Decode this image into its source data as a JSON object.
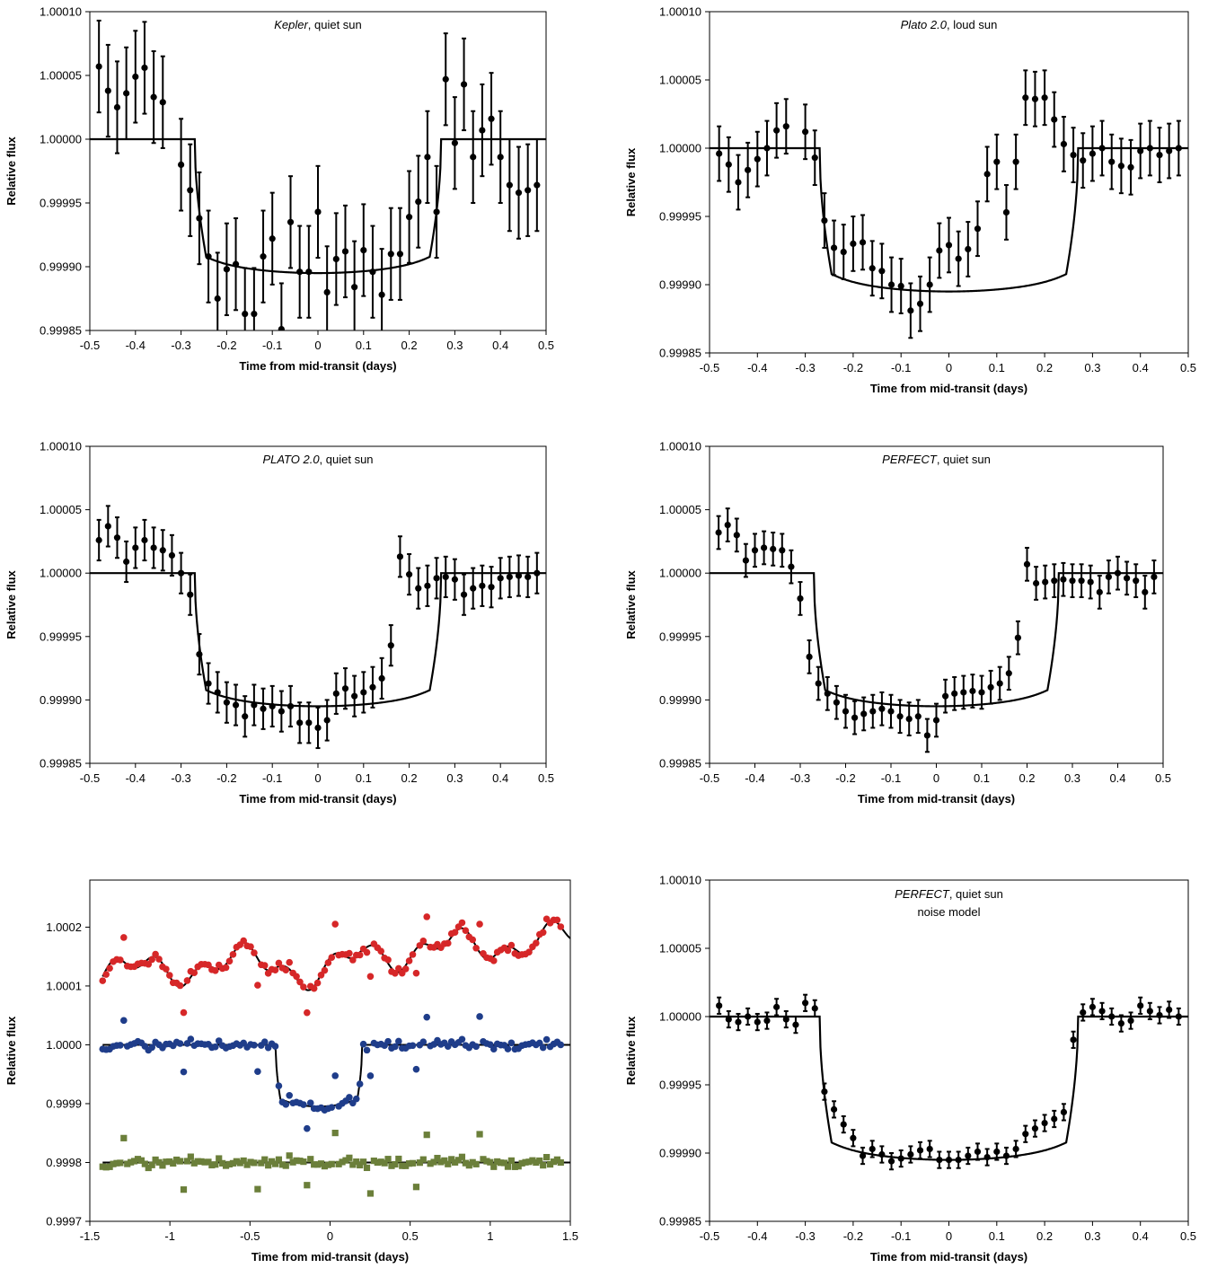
{
  "chart_data": [
    {
      "type": "scatter",
      "title": "",
      "annotation": {
        "italic": "Kepler",
        "rest": ", quiet sun"
      },
      "annotation2": "",
      "xlabel": "Time from mid-transit (days)",
      "ylabel": "Relative flux",
      "xlim": [
        -0.5,
        0.5
      ],
      "ylim": [
        0.99985,
        1.0001
      ],
      "xticks": [
        -0.5,
        -0.4,
        -0.3,
        -0.2,
        -0.1,
        0,
        0.1,
        0.2,
        0.3,
        0.4,
        0.5
      ],
      "xtick_labels": [
        "-0.5",
        "-0.4",
        "-0.3",
        "-0.2",
        "-0.1",
        "0",
        "0.1",
        "0.2",
        "0.3",
        "0.4",
        "0.5"
      ],
      "yticks": [
        0.99985,
        0.9999,
        0.99995,
        1.0,
        1.00005,
        1.0001
      ],
      "ytick_labels": [
        "0.99985",
        "0.99990",
        "0.99995",
        "1.00000",
        "1.00005",
        "1.00010"
      ],
      "grid": false,
      "model": {
        "depth": 0.000105,
        "t1": 0.27,
        "ingress": 0.025
      },
      "points": {
        "x": [
          -0.48,
          -0.46,
          -0.44,
          -0.42,
          -0.4,
          -0.38,
          -0.36,
          -0.34,
          -0.3,
          -0.28,
          -0.26,
          -0.24,
          -0.22,
          -0.2,
          -0.18,
          -0.16,
          -0.14,
          -0.12,
          -0.1,
          -0.08,
          -0.06,
          -0.04,
          -0.02,
          0,
          0.02,
          0.04,
          0.06,
          0.08,
          0.1,
          0.12,
          0.14,
          0.16,
          0.18,
          0.2,
          0.22,
          0.24,
          0.26,
          0.28,
          0.3,
          0.32,
          0.34,
          0.36,
          0.38,
          0.4,
          0.42,
          0.44,
          0.46,
          0.48
        ],
        "y": [
          1.000057,
          1.000038,
          1.000025,
          1.000036,
          1.000049,
          1.000056,
          1.000033,
          1.000029,
          0.99998,
          0.99996,
          0.999938,
          0.999908,
          0.999875,
          0.999898,
          0.999902,
          0.999863,
          0.999863,
          0.999908,
          0.999922,
          0.999851,
          0.999935,
          0.999896,
          0.999896,
          0.999943,
          0.99988,
          0.999906,
          0.999912,
          0.999884,
          0.999913,
          0.999896,
          0.999878,
          0.99991,
          0.99991,
          0.999939,
          0.999951,
          0.999986,
          0.999943,
          1.000047,
          0.999997,
          1.000043,
          0.999986,
          1.000007,
          1.000016,
          0.999986,
          0.999964,
          0.999958,
          0.99996,
          0.999964
        ],
        "err": 3.6e-05
      }
    },
    {
      "type": "scatter",
      "title": "",
      "annotation": {
        "italic": "Plato 2.0",
        "rest": ", loud sun"
      },
      "annotation2": "",
      "xlabel": "Time from mid-transit (days)",
      "ylabel": "Relative flux",
      "xlim": [
        -0.5,
        0.5
      ],
      "ylim": [
        0.99985,
        1.0001
      ],
      "xticks": [
        -0.5,
        -0.4,
        -0.3,
        -0.2,
        -0.1,
        0,
        0.1,
        0.2,
        0.3,
        0.4,
        0.5
      ],
      "xtick_labels": [
        "-0.5",
        "-0.4",
        "-0.3",
        "-0.2",
        "-0.1",
        "0",
        "0.1",
        "0.2",
        "0.3",
        "0.4",
        "0.5"
      ],
      "yticks": [
        0.99985,
        0.9999,
        0.99995,
        1.0,
        1.00005,
        1.0001
      ],
      "ytick_labels": [
        "0.99985",
        "0.99990",
        "0.99995",
        "1.00000",
        "1.00005",
        "1.00010"
      ],
      "grid": false,
      "model": {
        "depth": 0.000105,
        "t1": 0.27,
        "ingress": 0.025
      },
      "points": {
        "x": [
          -0.48,
          -0.46,
          -0.44,
          -0.42,
          -0.4,
          -0.38,
          -0.36,
          -0.34,
          -0.3,
          -0.28,
          -0.26,
          -0.24,
          -0.22,
          -0.2,
          -0.18,
          -0.16,
          -0.14,
          -0.12,
          -0.1,
          -0.08,
          -0.06,
          -0.04,
          -0.02,
          0,
          0.02,
          0.04,
          0.06,
          0.08,
          0.1,
          0.12,
          0.14,
          0.16,
          0.18,
          0.2,
          0.22,
          0.24,
          0.26,
          0.28,
          0.3,
          0.32,
          0.34,
          0.36,
          0.38,
          0.4,
          0.42,
          0.44,
          0.46,
          0.48
        ],
        "y": [
          0.999996,
          0.999988,
          0.999975,
          0.999984,
          0.999992,
          1.0,
          1.000013,
          1.000016,
          1.000012,
          0.999993,
          0.999947,
          0.999927,
          0.999924,
          0.99993,
          0.999931,
          0.999912,
          0.99991,
          0.9999,
          0.999899,
          0.999881,
          0.999886,
          0.9999,
          0.999925,
          0.999929,
          0.999919,
          0.999926,
          0.999941,
          0.999981,
          0.99999,
          0.999953,
          0.99999,
          1.000037,
          1.000036,
          1.000037,
          1.000021,
          1.000003,
          0.999995,
          0.999991,
          0.999996,
          1.0,
          0.99999,
          0.999987,
          0.999986,
          0.999998,
          1.0,
          0.999995,
          0.999998,
          1.0
        ],
        "err": 2e-05
      }
    },
    {
      "type": "scatter",
      "title": "",
      "annotation": {
        "italic": "PLATO 2.0",
        "rest": ", quiet sun"
      },
      "annotation2": "",
      "xlabel": "Time from mid-transit (days)",
      "ylabel": "Relative flux",
      "xlim": [
        -0.5,
        0.5
      ],
      "ylim": [
        0.99985,
        1.0001
      ],
      "xticks": [
        -0.5,
        -0.4,
        -0.3,
        -0.2,
        -0.1,
        0,
        0.1,
        0.2,
        0.3,
        0.4,
        0.5
      ],
      "xtick_labels": [
        "-0.5",
        "-0.4",
        "-0.3",
        "-0.2",
        "-0.1",
        "0",
        "0.1",
        "0.2",
        "0.3",
        "0.4",
        "0.5"
      ],
      "yticks": [
        0.99985,
        0.9999,
        0.99995,
        1.0,
        1.00005,
        1.0001
      ],
      "ytick_labels": [
        "0.99985",
        "0.99990",
        "0.99995",
        "1.00000",
        "1.00005",
        "1.00010"
      ],
      "grid": false,
      "model": {
        "depth": 0.000105,
        "t1": 0.27,
        "ingress": 0.025
      },
      "points": {
        "x": [
          -0.48,
          -0.46,
          -0.44,
          -0.42,
          -0.4,
          -0.38,
          -0.36,
          -0.34,
          -0.32,
          -0.3,
          -0.28,
          -0.26,
          -0.24,
          -0.22,
          -0.2,
          -0.18,
          -0.16,
          -0.14,
          -0.12,
          -0.1,
          -0.08,
          -0.06,
          -0.04,
          -0.02,
          0,
          0.02,
          0.04,
          0.06,
          0.08,
          0.1,
          0.12,
          0.14,
          0.16,
          0.18,
          0.2,
          0.22,
          0.24,
          0.26,
          0.28,
          0.3,
          0.32,
          0.34,
          0.36,
          0.38,
          0.4,
          0.42,
          0.44,
          0.46,
          0.48
        ],
        "y": [
          1.000026,
          1.000037,
          1.000028,
          1.000009,
          1.00002,
          1.000026,
          1.00002,
          1.000018,
          1.000014,
          1.0,
          0.999983,
          0.999936,
          0.999913,
          0.999906,
          0.999898,
          0.999896,
          0.999887,
          0.999896,
          0.999893,
          0.999895,
          0.999891,
          0.999895,
          0.999882,
          0.999882,
          0.999878,
          0.999884,
          0.999905,
          0.999909,
          0.999903,
          0.999906,
          0.99991,
          0.999917,
          0.999943,
          1.000013,
          0.999999,
          0.999988,
          0.99999,
          0.999996,
          0.999997,
          0.999995,
          0.999983,
          0.999988,
          0.99999,
          0.999989,
          0.999996,
          0.999997,
          0.999998,
          0.999997,
          1.0
        ],
        "err": 1.6e-05
      }
    },
    {
      "type": "scatter",
      "title": "",
      "annotation": {
        "italic": "PERFECT",
        "rest": ", quiet sun"
      },
      "annotation2": "",
      "xlabel": "Time from mid-transit (days)",
      "ylabel": "Relative flux",
      "xlim": [
        -0.5,
        0.5
      ],
      "ylim": [
        0.99985,
        1.0001
      ],
      "xticks": [
        -0.5,
        -0.4,
        -0.3,
        -0.2,
        -0.1,
        0,
        0.1,
        0.2,
        0.3,
        0.4,
        0.5
      ],
      "xtick_labels": [
        "-0.5",
        "-0.4",
        "-0.3",
        "-0.2",
        "-0.1",
        "0",
        "0.1",
        "0.2",
        "0.3",
        "0.4",
        "0.5"
      ],
      "yticks": [
        0.99985,
        0.9999,
        0.99995,
        1.0,
        1.00005,
        1.0001
      ],
      "ytick_labels": [
        "0.99985",
        "0.99990",
        "0.99995",
        "1.00000",
        "1.00005",
        "1.00010"
      ],
      "grid": false,
      "model": {
        "depth": 0.000105,
        "t1": 0.27,
        "ingress": 0.025
      },
      "points": {
        "x": [
          -0.48,
          -0.46,
          -0.44,
          -0.42,
          -0.4,
          -0.38,
          -0.36,
          -0.34,
          -0.32,
          -0.3,
          -0.28,
          -0.26,
          -0.24,
          -0.22,
          -0.2,
          -0.18,
          -0.16,
          -0.14,
          -0.12,
          -0.1,
          -0.08,
          -0.06,
          -0.04,
          -0.02,
          0,
          0.02,
          0.04,
          0.06,
          0.08,
          0.1,
          0.12,
          0.14,
          0.16,
          0.18,
          0.2,
          0.22,
          0.24,
          0.26,
          0.28,
          0.3,
          0.32,
          0.34,
          0.36,
          0.38,
          0.4,
          0.42,
          0.44,
          0.46,
          0.48
        ],
        "y": [
          1.000032,
          1.000038,
          1.00003,
          1.00001,
          1.000018,
          1.00002,
          1.000019,
          1.000018,
          1.000005,
          0.99998,
          0.999934,
          0.999913,
          0.999905,
          0.999898,
          0.999891,
          0.999886,
          0.999889,
          0.999891,
          0.999893,
          0.999891,
          0.999887,
          0.999885,
          0.999887,
          0.999872,
          0.999884,
          0.999903,
          0.999905,
          0.999906,
          0.999907,
          0.999906,
          0.99991,
          0.999913,
          0.999921,
          0.999949,
          1.000007,
          0.999992,
          0.999993,
          0.999994,
          0.999995,
          0.999994,
          0.999994,
          0.999993,
          0.999985,
          0.999997,
          1.0,
          0.999996,
          0.999994,
          0.999985,
          0.999997
        ],
        "err": 1.3e-05
      }
    },
    {
      "type": "scatter",
      "title": "",
      "annotation": {
        "italic": "",
        "rest": ""
      },
      "annotation2": "",
      "xlabel": "Time from mid-transit (days)",
      "ylabel": "Relative flux",
      "xlim": [
        -1.5,
        1.5
      ],
      "ylim": [
        0.9997,
        1.00028
      ],
      "xticks": [
        -1.5,
        -1,
        -0.5,
        0,
        0.5,
        1,
        1.5
      ],
      "xtick_labels": [
        "-1.5",
        "-1",
        "-0.5",
        "0",
        "0.5",
        "1",
        "1.5"
      ],
      "yticks": [
        0.9997,
        0.9998,
        0.9999,
        1.0,
        1.0001,
        1.0002
      ],
      "ytick_labels": [
        "0.9997",
        "0.9998",
        "0.9999",
        "1.0000",
        "1.0001",
        "1.0002"
      ],
      "grid": false,
      "colors": {
        "red": "#d62728",
        "blue": "#1f3d8a",
        "green": "#6b7f3a"
      }
    },
    {
      "type": "scatter",
      "title": "",
      "annotation": {
        "italic": "PERFECT",
        "rest": ", quiet sun"
      },
      "annotation2": "noise model",
      "xlabel": "Time from mid-transit (days)",
      "ylabel": "Relative flux",
      "xlim": [
        -0.5,
        0.5
      ],
      "ylim": [
        0.99985,
        1.0001
      ],
      "xticks": [
        -0.5,
        -0.4,
        -0.3,
        -0.2,
        -0.1,
        0,
        0.1,
        0.2,
        0.3,
        0.4,
        0.5
      ],
      "xtick_labels": [
        "-0.5",
        "-0.4",
        "-0.3",
        "-0.2",
        "-0.1",
        "0",
        "0.1",
        "0.2",
        "0.3",
        "0.4",
        "0.5"
      ],
      "yticks": [
        0.99985,
        0.9999,
        0.99995,
        1.0,
        1.00005,
        1.0001
      ],
      "ytick_labels": [
        "0.99985",
        "0.99990",
        "0.99995",
        "1.00000",
        "1.00005",
        "1.00010"
      ],
      "grid": false,
      "model": {
        "depth": 0.000105,
        "t1": 0.27,
        "ingress": 0.025
      },
      "points": {
        "x": [
          -0.48,
          -0.46,
          -0.44,
          -0.42,
          -0.4,
          -0.38,
          -0.36,
          -0.34,
          -0.32,
          -0.3,
          -0.28,
          -0.26,
          -0.24,
          -0.22,
          -0.2,
          -0.18,
          -0.16,
          -0.14,
          -0.12,
          -0.1,
          -0.08,
          -0.06,
          -0.04,
          -0.02,
          0,
          0.02,
          0.04,
          0.06,
          0.08,
          0.1,
          0.12,
          0.14,
          0.16,
          0.18,
          0.2,
          0.22,
          0.24,
          0.26,
          0.28,
          0.3,
          0.32,
          0.34,
          0.36,
          0.38,
          0.4,
          0.42,
          0.44,
          0.46,
          0.48
        ],
        "y": [
          1.000008,
          0.999998,
          0.999996,
          1.0,
          0.999996,
          0.999997,
          1.000007,
          0.999998,
          0.999994,
          1.00001,
          1.000006,
          0.999945,
          0.999932,
          0.999921,
          0.999911,
          0.999898,
          0.999903,
          0.999899,
          0.999894,
          0.999896,
          0.999899,
          0.999902,
          0.999903,
          0.999895,
          0.999895,
          0.999895,
          0.999898,
          0.999901,
          0.999897,
          0.999901,
          0.999898,
          0.999903,
          0.999914,
          0.999918,
          0.999922,
          0.999925,
          0.99993,
          0.999983,
          1.000003,
          1.000007,
          1.000004,
          1.0,
          0.999995,
          0.999997,
          1.000008,
          1.000004,
          1.000001,
          1.000005,
          1.0
        ],
        "err": 6e-06
      }
    }
  ]
}
